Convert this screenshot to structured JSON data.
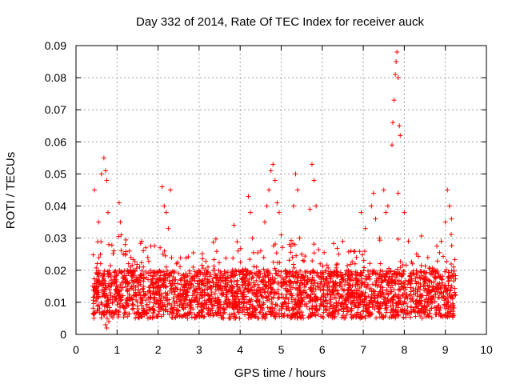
{
  "chart_data": {
    "type": "scatter",
    "title": "Day 332 of 2014, Rate Of TEC Index for receiver auck",
    "xlabel": "GPS time / hours",
    "ylabel": "ROTI / TECUs",
    "xlim": [
      0,
      10
    ],
    "ylim": [
      0,
      0.09
    ],
    "x_ticks": [
      "0",
      "1",
      "2",
      "3",
      "4",
      "5",
      "6",
      "7",
      "8",
      "9",
      "10"
    ],
    "y_ticks": [
      "0",
      "0.01",
      "0.02",
      "0.03",
      "0.04",
      "0.05",
      "0.06",
      "0.07",
      "0.08",
      "0.09"
    ],
    "grid": true,
    "marker": "+",
    "color": "#ff0000",
    "series": [
      {
        "name": "ROTI",
        "x": [
          0.45,
          0.55,
          0.62,
          0.68,
          0.72,
          0.75,
          0.78,
          0.8,
          0.72,
          0.75,
          0.8,
          0.85,
          1.05,
          1.08,
          1.1,
          1.15,
          1.2,
          1.3,
          1.4,
          1.55,
          1.6,
          1.7,
          1.75,
          1.6,
          2.1,
          2.15,
          2.2,
          2.25,
          2.3,
          2.05,
          2.12,
          2.2,
          2.45,
          2.5,
          2.55,
          3.85,
          3.95,
          4.2,
          4.25,
          4.3,
          4.4,
          4.5,
          4.6,
          4.65,
          4.7,
          4.75,
          4.8,
          4.85,
          4.9,
          4.95,
          5.0,
          5.2,
          5.3,
          5.35,
          5.4,
          5.45,
          5.5,
          5.7,
          5.75,
          5.8,
          5.85,
          5.95,
          6.0,
          6.2,
          6.4,
          6.5,
          6.7,
          6.8,
          6.95,
          7.05,
          7.2,
          7.25,
          7.3,
          7.4,
          7.5,
          7.55,
          7.6,
          7.7,
          7.72,
          7.75,
          7.78,
          7.8,
          7.82,
          7.85,
          7.88,
          7.9,
          7.85,
          8.0,
          8.1,
          8.2,
          8.3,
          8.5,
          8.7,
          8.9,
          9.0,
          9.05,
          9.1,
          9.15,
          9.2
        ],
        "y": [
          0.045,
          0.035,
          0.05,
          0.055,
          0.051,
          0.048,
          0.038,
          0.028,
          0.003,
          0.002,
          0.004,
          0.012,
          0.041,
          0.035,
          0.031,
          0.025,
          0.028,
          0.026,
          0.02,
          0.021,
          0.029,
          0.027,
          0.024,
          0.009,
          0.046,
          0.04,
          0.038,
          0.033,
          0.045,
          0.027,
          0.025,
          0.021,
          0.022,
          0.019,
          0.01,
          0.034,
          0.026,
          0.043,
          0.038,
          0.03,
          0.021,
          0.026,
          0.035,
          0.04,
          0.045,
          0.051,
          0.053,
          0.048,
          0.041,
          0.038,
          0.031,
          0.028,
          0.04,
          0.05,
          0.045,
          0.03,
          0.025,
          0.039,
          0.053,
          0.048,
          0.04,
          0.022,
          0.018,
          0.019,
          0.025,
          0.029,
          0.026,
          0.022,
          0.038,
          0.033,
          0.04,
          0.044,
          0.036,
          0.03,
          0.045,
          0.038,
          0.04,
          0.059,
          0.066,
          0.073,
          0.081,
          0.085,
          0.088,
          0.08,
          0.065,
          0.062,
          0.044,
          0.038,
          0.029,
          0.022,
          0.025,
          0.018,
          0.02,
          0.029,
          0.035,
          0.045,
          0.04,
          0.036,
          0.021
        ],
        "background_band": {
          "note": "dense scatter of several thousand points, approx. ROTI 0.005-0.025 TECUs across the active period",
          "active_hours": [
            [
              0.4,
              3.8
            ],
            [
              3.8,
              6.2
            ],
            [
              6.2,
              9.25
            ]
          ],
          "typical_range": [
            0.005,
            0.02
          ]
        }
      }
    ]
  }
}
